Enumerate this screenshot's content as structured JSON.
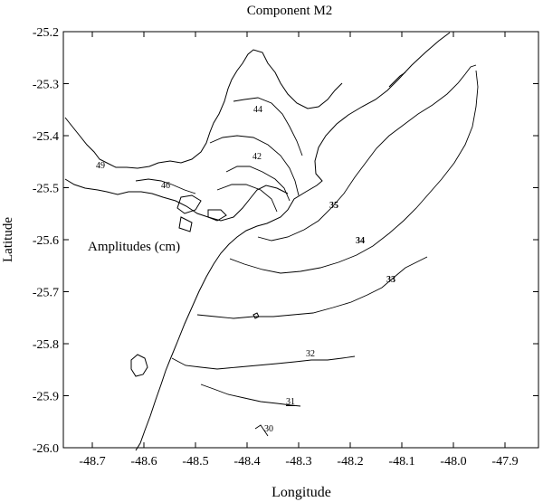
{
  "title": "Component   M2",
  "annotation": "Amplitudes (cm)",
  "axes": {
    "xlabel": "Longitude",
    "ylabel": "Latitude",
    "x_ticks": [
      "-48.7",
      "-48.6",
      "-48.5",
      "-48.4",
      "-48.3",
      "-48.2",
      "-48.1",
      "-48.0",
      "-47.9"
    ],
    "y_ticks": [
      "-25.2",
      "-25.3",
      "-25.4",
      "-25.5",
      "-25.6",
      "-25.7",
      "-25.8",
      "-25.9",
      "-26.0"
    ]
  },
  "contour_labels": [
    {
      "text": "44"
    },
    {
      "text": "42"
    },
    {
      "text": "46"
    },
    {
      "text": "49"
    },
    {
      "text": "35"
    },
    {
      "text": "34"
    },
    {
      "text": "33"
    },
    {
      "text": "32"
    },
    {
      "text": "31"
    },
    {
      "text": "30"
    }
  ]
}
